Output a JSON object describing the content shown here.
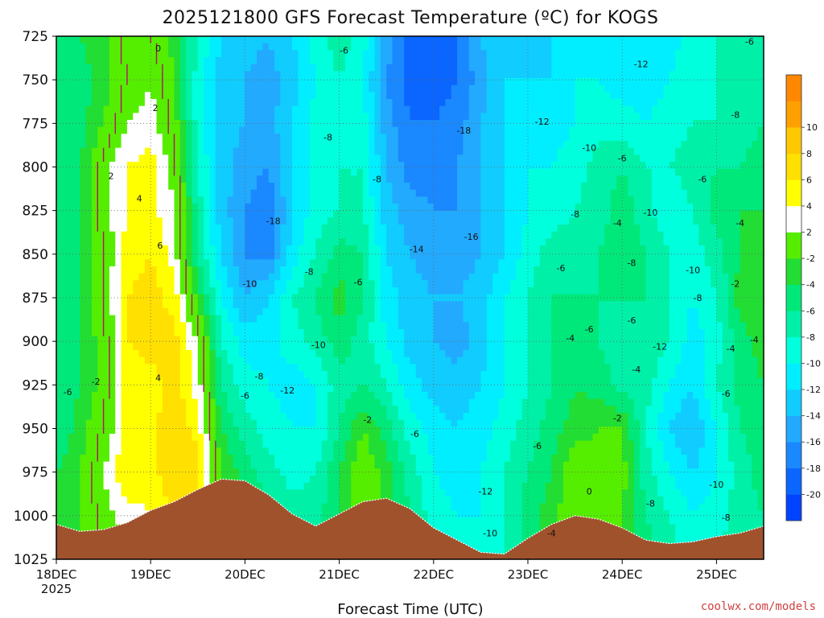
{
  "chart_data": {
    "type": "heatmap",
    "title": "2025121800 GFS Forecast Temperature (ºC) for KOGS",
    "xlabel": "Forecast Time (UTC)",
    "ylabel": "",
    "credit": "coolwx.com/models",
    "x_ticks": [
      "18DEC",
      "19DEC",
      "20DEC",
      "21DEC",
      "22DEC",
      "23DEC",
      "24DEC",
      "25DEC"
    ],
    "x_tick_year": "2025",
    "y_ticks": [
      725,
      750,
      775,
      800,
      825,
      850,
      875,
      900,
      925,
      950,
      975,
      1000,
      1025
    ],
    "ylim": [
      725,
      1025
    ],
    "xlim_days": [
      0,
      7.5
    ],
    "grid": true,
    "colorbar": {
      "levels": [
        -22,
        -20,
        -18,
        -16,
        -14,
        -12,
        -10,
        -8,
        -6,
        -4,
        -2,
        2,
        4,
        6,
        8,
        10,
        12
      ],
      "labels": [
        "-20",
        "-18",
        "-16",
        "-14",
        "-12",
        "-10",
        "-8",
        "-6",
        "-4",
        "-2",
        "2",
        "4",
        "6",
        "8",
        "10"
      ],
      "colors": [
        "#0044ff",
        "#0a66ff",
        "#1a88ff",
        "#22aaff",
        "#11ccff",
        "#00eeff",
        "#00ffdd",
        "#00f0a8",
        "#00e87a",
        "#22dd33",
        "#55ee00",
        "#ffffff",
        "#ffff00",
        "#ffe000",
        "#ffc800",
        "#ffa000",
        "#ff8800"
      ]
    },
    "temperature_grid": {
      "times": [
        0,
        0.25,
        0.5,
        0.75,
        1.0,
        1.25,
        1.5,
        1.75,
        2.0,
        2.25,
        2.5,
        2.75,
        3.0,
        3.25,
        3.5,
        3.75,
        4.0,
        4.25,
        4.5,
        4.75,
        5.0,
        5.25,
        5.5,
        5.75,
        6.0,
        6.25,
        6.5,
        6.75,
        7.0,
        7.25,
        7.5
      ],
      "levels": [
        725,
        750,
        775,
        800,
        825,
        850,
        875,
        900,
        925,
        950,
        975,
        1000,
        1025
      ],
      "values": [
        [
          -5,
          -4,
          -3,
          1,
          0,
          -3,
          -8,
          -12,
          -13,
          -14,
          -12,
          -9,
          -7,
          -9,
          -15,
          -19,
          -20,
          -18,
          -14,
          -12,
          -13,
          -12,
          -11,
          -11,
          -12,
          -12,
          -11,
          -9,
          -8,
          -6,
          -6
        ],
        [
          -6,
          -5,
          -3,
          0,
          2,
          -2,
          -9,
          -13,
          -14,
          -15,
          -13,
          -10,
          -8,
          -10,
          -16,
          -19,
          -19,
          -18,
          -15,
          -12,
          -12,
          -12,
          -10,
          -10,
          -11,
          -11,
          -10,
          -9,
          -8,
          -7,
          -7
        ],
        [
          -6,
          -5,
          -2,
          2,
          3,
          -1,
          -9,
          -13,
          -14,
          -15,
          -12,
          -9,
          -8,
          -9,
          -15,
          -18,
          -18,
          -17,
          -14,
          -12,
          -11,
          -11,
          -10,
          -9,
          -9,
          -10,
          -9,
          -8,
          -8,
          -7,
          -6
        ],
        [
          -6,
          -4,
          1,
          4,
          5,
          1,
          -8,
          -13,
          -15,
          -16,
          -12,
          -9,
          -8,
          -8,
          -14,
          -17,
          -17,
          -16,
          -14,
          -12,
          -10,
          -10,
          -9,
          -7,
          -6,
          -8,
          -8,
          -7,
          -6,
          -6,
          -5
        ],
        [
          -5,
          -4,
          1,
          4,
          5,
          2,
          -7,
          -13,
          -16,
          -18,
          -12,
          -9,
          -8,
          -8,
          -13,
          -15,
          -16,
          -16,
          -14,
          -12,
          -10,
          -9,
          -8,
          -7,
          -5,
          -7,
          -10,
          -8,
          -5,
          -4,
          -4
        ],
        [
          -5,
          -4,
          0,
          5,
          6,
          3,
          -6,
          -12,
          -16,
          -17,
          -11,
          -8,
          -5,
          -6,
          -12,
          -14,
          -15,
          -15,
          -14,
          -12,
          -9,
          -7,
          -7,
          -6,
          -5,
          -6,
          -8,
          -9,
          -7,
          -4,
          -3
        ],
        [
          -5,
          -4,
          0,
          6,
          7,
          5,
          -3,
          -10,
          -14,
          -12,
          -8,
          -6,
          -3,
          -6,
          -11,
          -13,
          -14,
          -14,
          -13,
          -10,
          -8,
          -6,
          -6,
          -6,
          -6,
          -6,
          -8,
          -10,
          -8,
          -3,
          -2
        ],
        [
          -5,
          -4,
          -1,
          6,
          7,
          7,
          2,
          -8,
          -11,
          -11,
          -9,
          -7,
          -5,
          -7,
          -10,
          -13,
          -14,
          -15,
          -13,
          -10,
          -8,
          -6,
          -5,
          -6,
          -7,
          -7,
          -8,
          -11,
          -9,
          -5,
          -3
        ],
        [
          -6,
          -4,
          -1,
          5,
          5,
          7,
          3,
          -6,
          -9,
          -10,
          -11,
          -10,
          -7,
          -6,
          -8,
          -11,
          -13,
          -13,
          -12,
          -10,
          -8,
          -6,
          -4,
          -5,
          -7,
          -7,
          -10,
          -12,
          -8,
          -5,
          -4
        ],
        [
          -6,
          -3,
          0,
          5,
          5,
          8,
          5,
          -4,
          -7,
          -9,
          -10,
          -10,
          -6,
          -2,
          -5,
          -9,
          -11,
          -12,
          -11,
          -9,
          -7,
          -5,
          -3,
          -2,
          -2,
          -8,
          -12,
          -14,
          -10,
          -6,
          -5
        ],
        [
          -4,
          -2,
          2,
          6,
          5,
          8,
          7,
          -2,
          -5,
          -7,
          -9,
          -8,
          -4,
          0,
          -3,
          -7,
          -10,
          -11,
          -10,
          -8,
          -6,
          -4,
          0,
          -1,
          -1,
          -7,
          -10,
          -12,
          -10,
          -7,
          -5
        ],
        [
          -3,
          -2,
          1,
          3,
          4,
          6,
          6,
          -1,
          -4,
          -6,
          -7,
          -7,
          -4,
          0,
          -3,
          -6,
          -9,
          -10,
          -10,
          -8,
          -5,
          -3,
          0,
          -1,
          -2,
          -6,
          -8,
          -10,
          -9,
          -7,
          -6
        ],
        [
          -3,
          -2,
          0,
          2,
          3,
          5,
          5,
          -1,
          -3,
          -5,
          -6,
          -6,
          -4,
          -1,
          -3,
          -6,
          -8,
          -9,
          -9,
          -8,
          -5,
          -3,
          -1,
          -1,
          -2,
          -5,
          -7,
          -9,
          -8,
          -7,
          -6
        ]
      ]
    },
    "terrain_pressure": {
      "times": [
        0,
        0.25,
        0.5,
        0.75,
        1.0,
        1.25,
        1.5,
        1.75,
        2.0,
        2.25,
        2.5,
        2.75,
        3.0,
        3.25,
        3.5,
        3.75,
        4.0,
        4.25,
        4.5,
        4.75,
        5.0,
        5.25,
        5.5,
        5.75,
        6.0,
        6.25,
        6.5,
        6.75,
        7.0,
        7.25,
        7.5
      ],
      "values": [
        1005,
        1009,
        1008,
        1004,
        997,
        992,
        985,
        979,
        980,
        988,
        999,
        1006,
        999,
        992,
        990,
        996,
        1007,
        1014,
        1021,
        1022,
        1013,
        1005,
        1000,
        1002,
        1007,
        1014,
        1016,
        1015,
        1012,
        1010,
        1006
      ]
    },
    "contour_labels": [
      {
        "text": "0",
        "t": 1.08,
        "p": 732
      },
      {
        "text": "2",
        "t": 1.05,
        "p": 766
      },
      {
        "text": "2",
        "t": 0.58,
        "p": 805
      },
      {
        "text": "4",
        "t": 0.88,
        "p": 818
      },
      {
        "text": "6",
        "t": 1.1,
        "p": 845
      },
      {
        "text": "4",
        "t": 1.08,
        "p": 921
      },
      {
        "text": "-2",
        "t": 0.42,
        "p": 923
      },
      {
        "text": "-6",
        "t": 0.12,
        "p": 929
      },
      {
        "text": "-6",
        "t": 3.05,
        "p": 733
      },
      {
        "text": "-8",
        "t": 2.88,
        "p": 783
      },
      {
        "text": "-8",
        "t": 3.4,
        "p": 807
      },
      {
        "text": "-18",
        "t": 2.3,
        "p": 831
      },
      {
        "text": "-8",
        "t": 2.68,
        "p": 860
      },
      {
        "text": "-10",
        "t": 2.05,
        "p": 867
      },
      {
        "text": "-6",
        "t": 3.2,
        "p": 866
      },
      {
        "text": "-14",
        "t": 3.82,
        "p": 847
      },
      {
        "text": "-16",
        "t": 4.4,
        "p": 840
      },
      {
        "text": "-18",
        "t": 4.32,
        "p": 779
      },
      {
        "text": "-10",
        "t": 2.78,
        "p": 902
      },
      {
        "text": "-8",
        "t": 2.15,
        "p": 920
      },
      {
        "text": "-12",
        "t": 2.45,
        "p": 928
      },
      {
        "text": "-6",
        "t": 2.0,
        "p": 931
      },
      {
        "text": "-2",
        "t": 3.3,
        "p": 945
      },
      {
        "text": "-6",
        "t": 3.8,
        "p": 953
      },
      {
        "text": "-12",
        "t": 4.55,
        "p": 986
      },
      {
        "text": "-10",
        "t": 4.6,
        "p": 1010
      },
      {
        "text": "-4",
        "t": 5.25,
        "p": 1010
      },
      {
        "text": "-12",
        "t": 5.15,
        "p": 774
      },
      {
        "text": "-10",
        "t": 5.65,
        "p": 789
      },
      {
        "text": "-6",
        "t": 6.0,
        "p": 795
      },
      {
        "text": "-8",
        "t": 5.5,
        "p": 827
      },
      {
        "text": "-4",
        "t": 5.95,
        "p": 832
      },
      {
        "text": "-10",
        "t": 6.3,
        "p": 826
      },
      {
        "text": "-6",
        "t": 5.35,
        "p": 858
      },
      {
        "text": "-8",
        "t": 6.1,
        "p": 855
      },
      {
        "text": "-10",
        "t": 6.75,
        "p": 859
      },
      {
        "text": "-8",
        "t": 6.8,
        "p": 875
      },
      {
        "text": "-6",
        "t": 6.1,
        "p": 888
      },
      {
        "text": "-6",
        "t": 5.65,
        "p": 893
      },
      {
        "text": "-4",
        "t": 5.45,
        "p": 898
      },
      {
        "text": "-12",
        "t": 6.4,
        "p": 903
      },
      {
        "text": "-4",
        "t": 6.15,
        "p": 916
      },
      {
        "text": "-2",
        "t": 5.95,
        "p": 944
      },
      {
        "text": "-6",
        "t": 5.1,
        "p": 960
      },
      {
        "text": "0",
        "t": 5.65,
        "p": 986
      },
      {
        "text": "-8",
        "t": 6.3,
        "p": 993
      },
      {
        "text": "-12",
        "t": 6.2,
        "p": 741
      },
      {
        "text": "-6",
        "t": 7.35,
        "p": 728
      },
      {
        "text": "-8",
        "t": 7.2,
        "p": 770
      },
      {
        "text": "-6",
        "t": 6.85,
        "p": 807
      },
      {
        "text": "-4",
        "t": 7.25,
        "p": 832
      },
      {
        "text": "-2",
        "t": 7.2,
        "p": 867
      },
      {
        "text": "-4",
        "t": 7.4,
        "p": 899
      },
      {
        "text": "-4",
        "t": 7.15,
        "p": 904
      },
      {
        "text": "-6",
        "t": 7.1,
        "p": 930
      },
      {
        "text": "-10",
        "t": 7.0,
        "p": 982
      },
      {
        "text": "-8",
        "t": 7.1,
        "p": 1001
      }
    ]
  }
}
